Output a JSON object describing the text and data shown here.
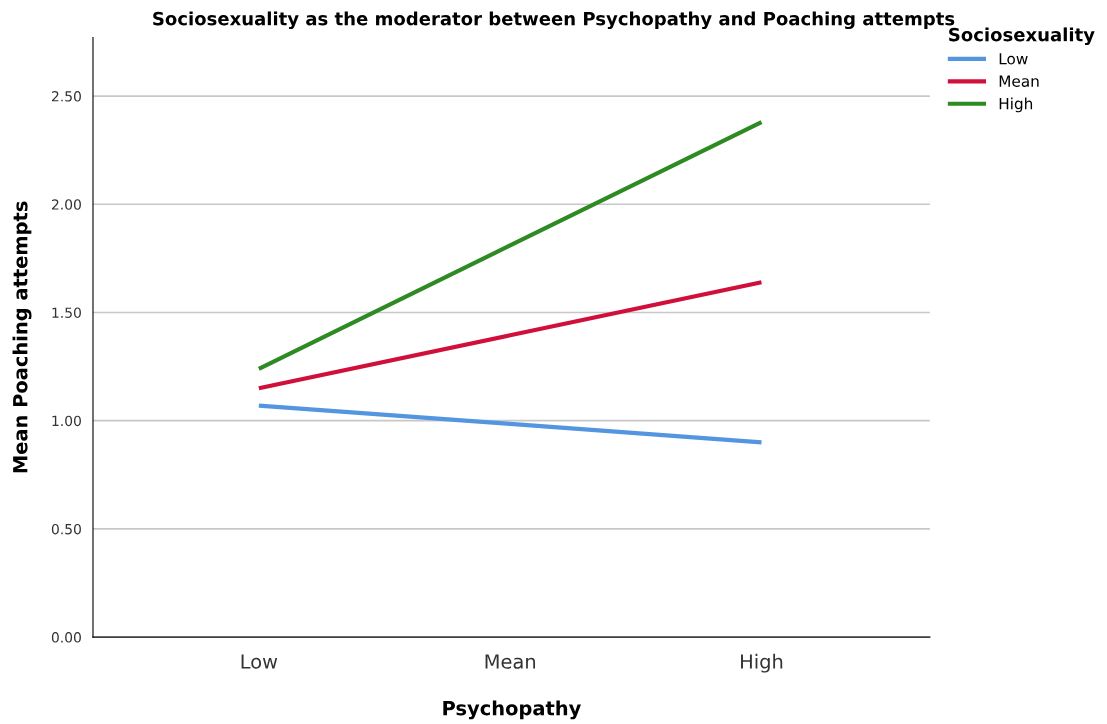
{
  "chart_data": {
    "type": "line",
    "title": "Sociosexuality as the moderator between Psychopathy and Poaching attempts",
    "xlabel": "Psychopathy",
    "ylabel": "Mean Poaching attempts",
    "legend_title": "Sociosexuality",
    "categories": [
      "Low",
      "Mean",
      "High"
    ],
    "series": [
      {
        "name": "Low",
        "color": "#5495e0",
        "values": [
          1.07,
          0.985,
          0.9
        ]
      },
      {
        "name": "Mean",
        "color": "#d0103a",
        "values": [
          1.15,
          1.395,
          1.64
        ]
      },
      {
        "name": "High",
        "color": "#2e8a22",
        "values": [
          1.24,
          1.81,
          2.38
        ]
      }
    ],
    "ylim": [
      0,
      2.77
    ],
    "yticks": [
      {
        "value": 0,
        "label": "0.00"
      },
      {
        "value": 0.5,
        "label": "0.50"
      },
      {
        "value": 1,
        "label": "1.00"
      },
      {
        "value": 1.5,
        "label": "1.50"
      },
      {
        "value": 2,
        "label": "2.00"
      },
      {
        "value": 2.5,
        "label": "2.50"
      }
    ],
    "grid": "y",
    "legend": "top right",
    "marker": "none",
    "line_style": "solid"
  }
}
